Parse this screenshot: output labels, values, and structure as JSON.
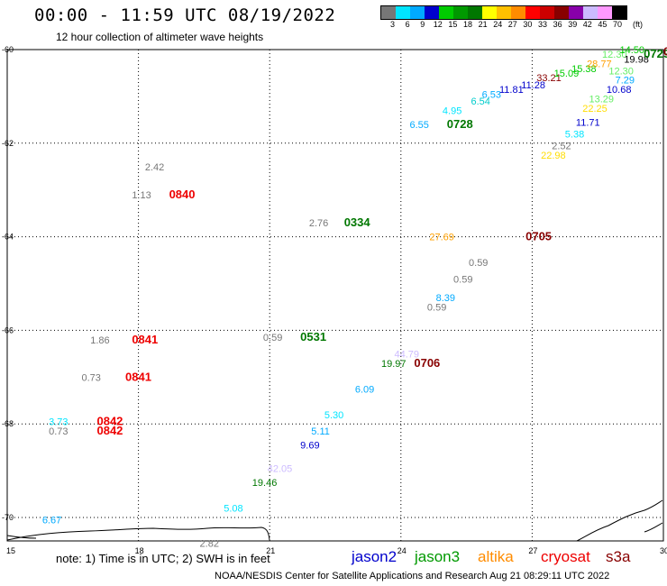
{
  "title": "00:00 - 11:59 UTC 08/19/2022",
  "subtitle": "12 hour collection of altimeter wave heights",
  "legend": {
    "unit": "(ft)",
    "colors": [
      "#777777",
      "#00e5ff",
      "#00aaff",
      "#0000cc",
      "#00cc00",
      "#009900",
      "#007700",
      "#ffff00",
      "#ffc000",
      "#ff8c00",
      "#ff0000",
      "#cc0000",
      "#880000",
      "#8800aa",
      "#ccbbff",
      "#ff99ff",
      "#000000"
    ],
    "ticks": [
      "3",
      "6",
      "9",
      "12",
      "15",
      "18",
      "21",
      "24",
      "27",
      "30",
      "33",
      "36",
      "39",
      "42",
      "45",
      "70"
    ]
  },
  "axes": {
    "x_ticks": [
      "15",
      "18",
      "21",
      "24",
      "27",
      "30"
    ],
    "y_ticks": [
      "-60",
      "-62",
      "-64",
      "-66",
      "-68",
      "-70"
    ]
  },
  "observations": [
    {
      "text": "2.42",
      "color": "#777777",
      "lon": 18.15,
      "lat": -62.5
    },
    {
      "text": "1.13",
      "color": "#777777",
      "lon": 17.85,
      "lat": -63.1
    },
    {
      "text": "0840",
      "color": "#ee0000",
      "lon": 18.7,
      "lat": -63.1,
      "time": true
    },
    {
      "text": "2.76",
      "color": "#777777",
      "lon": 21.9,
      "lat": -63.7
    },
    {
      "text": "0334",
      "color": "#007700",
      "lon": 22.7,
      "lat": -63.7,
      "time": true
    },
    {
      "text": "6.55",
      "color": "#00aaff",
      "lon": 24.2,
      "lat": -61.6
    },
    {
      "text": "0728",
      "color": "#007700",
      "lon": 25.05,
      "lat": -61.6,
      "time": true
    },
    {
      "text": "4.95",
      "color": "#00e5ff",
      "lon": 24.95,
      "lat": -61.3
    },
    {
      "text": "6.54",
      "color": "#00cccc",
      "lon": 25.6,
      "lat": -61.1
    },
    {
      "text": "6.53",
      "color": "#00aaff",
      "lon": 25.85,
      "lat": -60.95
    },
    {
      "text": "11.81",
      "color": "#0000cc",
      "lon": 26.25,
      "lat": -60.85
    },
    {
      "text": "11.28",
      "color": "#0000cc",
      "lon": 26.75,
      "lat": -60.75
    },
    {
      "text": "33.21",
      "color": "#880000",
      "lon": 27.1,
      "lat": -60.6
    },
    {
      "text": "15.09",
      "color": "#00cc00",
      "lon": 27.5,
      "lat": -60.5
    },
    {
      "text": "15.38",
      "color": "#00cc00",
      "lon": 27.9,
      "lat": -60.4
    },
    {
      "text": "28.77",
      "color": "#ffa000",
      "lon": 28.25,
      "lat": -60.3
    },
    {
      "text": "12.30",
      "color": "#66ee66",
      "lon": 28.6,
      "lat": -60.1
    },
    {
      "text": "14.50",
      "color": "#00cc00",
      "lon": 29.0,
      "lat": -60.0
    },
    {
      "text": "19.98",
      "color": "#000000",
      "lon": 29.1,
      "lat": -60.2
    },
    {
      "text": "0729",
      "color": "#007700",
      "lon": 29.55,
      "lat": -60.1,
      "time": true
    },
    {
      "text": "0705",
      "color": "#880000",
      "lon": 30.0,
      "lat": -60.05,
      "time": true
    },
    {
      "text": "12.30",
      "color": "#66ee66",
      "lon": 28.75,
      "lat": -60.45
    },
    {
      "text": "7.29",
      "color": "#00aaff",
      "lon": 28.9,
      "lat": -60.65
    },
    {
      "text": "10.68",
      "color": "#0000cc",
      "lon": 28.7,
      "lat": -60.85
    },
    {
      "text": "13.29",
      "color": "#66ee66",
      "lon": 28.3,
      "lat": -61.05
    },
    {
      "text": "22.25",
      "color": "#ffdd00",
      "lon": 28.15,
      "lat": -61.25
    },
    {
      "text": "11.71",
      "color": "#0000cc",
      "lon": 28.0,
      "lat": -61.55
    },
    {
      "text": "5.38",
      "color": "#00e5ff",
      "lon": 27.75,
      "lat": -61.8
    },
    {
      "text": "2.52",
      "color": "#777777",
      "lon": 27.45,
      "lat": -62.05
    },
    {
      "text": "22.98",
      "color": "#ffdd00",
      "lon": 27.2,
      "lat": -62.25
    },
    {
      "text": "27.69",
      "color": "#ffa000",
      "lon": 24.65,
      "lat": -64.0
    },
    {
      "text": "0705",
      "color": "#880000",
      "lon": 26.85,
      "lat": -64.0,
      "time": true
    },
    {
      "text": "0.59",
      "color": "#777777",
      "lon": 25.55,
      "lat": -64.55
    },
    {
      "text": "0.59",
      "color": "#777777",
      "lon": 25.2,
      "lat": -64.9
    },
    {
      "text": "8.39",
      "color": "#00aaff",
      "lon": 24.8,
      "lat": -65.3
    },
    {
      "text": "0.59",
      "color": "#777777",
      "lon": 24.6,
      "lat": -65.5
    },
    {
      "text": "1.86",
      "color": "#777777",
      "lon": 16.9,
      "lat": -66.2
    },
    {
      "text": "0841",
      "color": "#ee0000",
      "lon": 17.85,
      "lat": -66.2,
      "time": true
    },
    {
      "text": "0.59",
      "color": "#777777",
      "lon": 20.85,
      "lat": -66.15
    },
    {
      "text": "0531",
      "color": "#007700",
      "lon": 21.7,
      "lat": -66.15,
      "time": true
    },
    {
      "text": "44.79",
      "color": "#ccbbff",
      "lon": 23.85,
      "lat": -66.5
    },
    {
      "text": "19.97",
      "color": "#007700",
      "lon": 23.55,
      "lat": -66.7
    },
    {
      "text": "0706",
      "color": "#880000",
      "lon": 24.3,
      "lat": -66.7,
      "time": true
    },
    {
      "text": "0.73",
      "color": "#777777",
      "lon": 16.7,
      "lat": -67.0
    },
    {
      "text": "0841",
      "color": "#ee0000",
      "lon": 17.7,
      "lat": -67.0,
      "time": true
    },
    {
      "text": "6.09",
      "color": "#00aaff",
      "lon": 22.95,
      "lat": -67.25
    },
    {
      "text": "5.30",
      "color": "#00e5ff",
      "lon": 22.25,
      "lat": -67.8
    },
    {
      "text": "3.73",
      "color": "#00e5ff",
      "lon": 15.95,
      "lat": -67.95
    },
    {
      "text": "0842",
      "color": "#ee0000",
      "lon": 17.05,
      "lat": -67.95,
      "time": true
    },
    {
      "text": "0.73",
      "color": "#777777",
      "lon": 15.95,
      "lat": -68.15
    },
    {
      "text": "0842",
      "color": "#ee0000",
      "lon": 17.05,
      "lat": -68.15,
      "time": true
    },
    {
      "text": "5.11",
      "color": "#00aaff",
      "lon": 21.95,
      "lat": -68.15
    },
    {
      "text": "9.69",
      "color": "#0000cc",
      "lon": 21.7,
      "lat": -68.45
    },
    {
      "text": "42.05",
      "color": "#ccbbff",
      "lon": 20.95,
      "lat": -68.95
    },
    {
      "text": "19.46",
      "color": "#007700",
      "lon": 20.6,
      "lat": -69.25
    },
    {
      "text": "5.08",
      "color": "#00e5ff",
      "lon": 19.95,
      "lat": -69.8
    },
    {
      "text": "6.67",
      "color": "#00aaff",
      "lon": 15.8,
      "lat": -70.05
    },
    {
      "text": "2.82",
      "color": "#777777",
      "lon": 19.4,
      "lat": -70.55
    }
  ],
  "note": "note: 1) Time is in UTC; 2) SWH is in feet",
  "satellites": [
    {
      "name": "jason2",
      "color": "#0000cc"
    },
    {
      "name": "jason3",
      "color": "#009900"
    },
    {
      "name": "altika",
      "color": "#ff8c00"
    },
    {
      "name": "cryosat",
      "color": "#ee0000"
    },
    {
      "name": "s3a",
      "color": "#880000"
    }
  ],
  "footer": "NOAA/NESDIS Center for Satellite Applications and Research   Aug 21 08:29:11 UTC 2022"
}
